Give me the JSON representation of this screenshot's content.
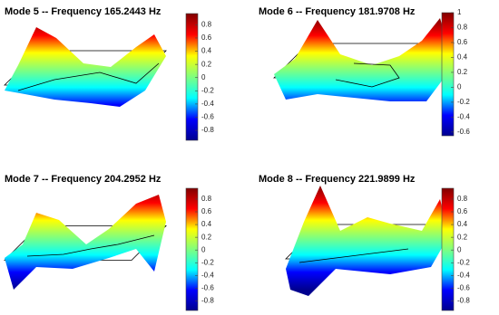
{
  "chart_data": [
    {
      "type": "surface",
      "title": "Mode 5 --  Frequency 165.2443 Hz",
      "colormap": "jet",
      "clim": [
        -0.95,
        0.97
      ],
      "cticks": [
        0.8,
        0.6,
        0.4,
        0.2,
        0,
        -0.2,
        -0.4,
        -0.6,
        -0.8
      ]
    },
    {
      "type": "surface",
      "title": "Mode 6 --  Frequency 181.9708 Hz",
      "colormap": "jet",
      "clim": [
        -0.65,
        1
      ],
      "cticks": [
        1,
        0.8,
        0.6,
        0.4,
        0.2,
        0,
        -0.2,
        -0.4,
        -0.6
      ]
    },
    {
      "type": "surface",
      "title": "Mode 7 --  Frequency 204.2952 Hz",
      "colormap": "jet",
      "clim": [
        -0.95,
        0.97
      ],
      "cticks": [
        0.8,
        0.6,
        0.4,
        0.2,
        0,
        -0.2,
        -0.4,
        -0.6,
        -0.8
      ]
    },
    {
      "type": "surface",
      "title": "Mode 8 --  Frequency 221.9899 Hz",
      "colormap": "jet",
      "clim": [
        -0.95,
        0.97
      ],
      "cticks": [
        0.8,
        0.6,
        0.4,
        0.2,
        0,
        -0.2,
        -0.4,
        -0.6,
        -0.8
      ]
    }
  ]
}
